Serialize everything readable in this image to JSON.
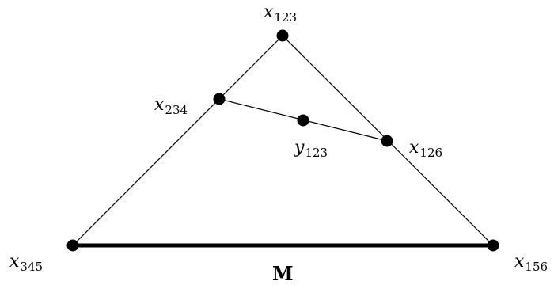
{
  "diagram": {
    "vertices": {
      "x123": {
        "base": "x",
        "sub": "123"
      },
      "x234": {
        "base": "x",
        "sub": "234"
      },
      "y123": {
        "base": "y",
        "sub": "123"
      },
      "x126": {
        "base": "x",
        "sub": "126"
      },
      "x345": {
        "base": "x",
        "sub": "345"
      },
      "x156": {
        "base": "x",
        "sub": "156"
      }
    },
    "bottom_edge_label": "M"
  }
}
